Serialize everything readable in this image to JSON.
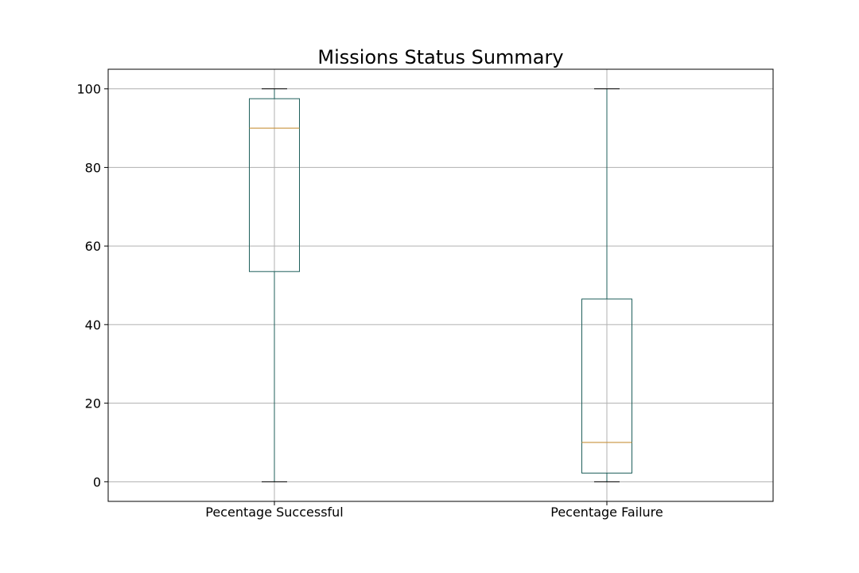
{
  "chart_data": {
    "type": "box",
    "title": "Missions Status Summary",
    "xlabel": "",
    "ylabel": "",
    "ylim": [
      -5,
      105
    ],
    "yticks": [
      0,
      20,
      40,
      60,
      80,
      100
    ],
    "grid": true,
    "categories": [
      "Pecentage Successful",
      "Pecentage Failure"
    ],
    "boxes": [
      {
        "whisker_low": 0,
        "q1": 53.5,
        "median": 90,
        "q3": 97.5,
        "whisker_high": 100
      },
      {
        "whisker_low": 0,
        "q1": 2.2,
        "median": 10,
        "q3": 46.5,
        "whisker_high": 100
      }
    ],
    "colors": {
      "box": "#1f5f5b",
      "median": "#c8923c",
      "grid": "#b0b0b0"
    }
  }
}
